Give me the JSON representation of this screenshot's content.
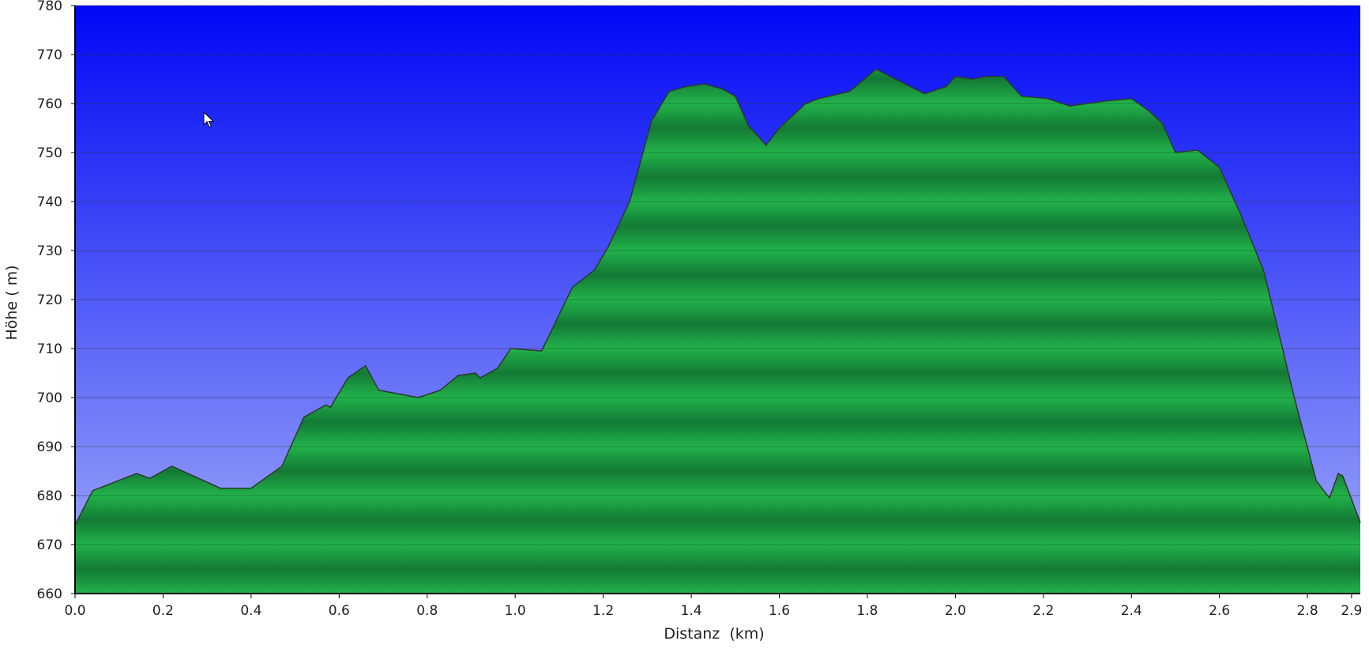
{
  "chart_data": {
    "type": "area",
    "xlabel": "Distanz  (km)",
    "ylabel": "Höhe ( m)",
    "xlim": [
      0,
      2.92
    ],
    "ylim": [
      660,
      780
    ],
    "x_ticks": [
      0,
      0.2,
      0.4,
      0.6,
      0.8,
      1.0,
      1.2,
      1.4,
      1.6,
      1.8,
      2.0,
      2.2,
      2.4,
      2.6,
      2.8,
      2.9
    ],
    "x_tick_labels": [
      "0.0",
      "0.2",
      "0.4",
      "0.6",
      "0.8",
      "1.0",
      "1.2",
      "1.4",
      "1.6",
      "1.8",
      "2.0",
      "2.2",
      "2.4",
      "2.6",
      "2.8",
      "2.9"
    ],
    "y_ticks": [
      660,
      670,
      680,
      690,
      700,
      710,
      720,
      730,
      740,
      750,
      760,
      770,
      780
    ],
    "y_tick_labels": [
      "660",
      "670",
      "680",
      "690",
      "700",
      "710",
      "720",
      "730",
      "740",
      "750",
      "760",
      "770",
      "780"
    ],
    "grid": "horizontal",
    "legend": "none",
    "series": [
      {
        "x": [
          0.0,
          0.04,
          0.14,
          0.17,
          0.22,
          0.33,
          0.4,
          0.47,
          0.52,
          0.57,
          0.58,
          0.62,
          0.66,
          0.69,
          0.78,
          0.83,
          0.87,
          0.91,
          0.92,
          0.96,
          0.99,
          1.06,
          1.13,
          1.18,
          1.21,
          1.26,
          1.31,
          1.35,
          1.39,
          1.43,
          1.47,
          1.5,
          1.53,
          1.57,
          1.6,
          1.66,
          1.69,
          1.76,
          1.82,
          1.93,
          1.98,
          2.0,
          2.04,
          2.07,
          2.11,
          2.15,
          2.21,
          2.26,
          2.3,
          2.34,
          2.4,
          2.44,
          2.47,
          2.5,
          2.55,
          2.6,
          2.65,
          2.7,
          2.73,
          2.77,
          2.82,
          2.85,
          2.87,
          2.88,
          2.92
        ],
        "values": [
          674,
          681,
          684.5,
          683.5,
          686,
          681.5,
          681.5,
          686,
          696,
          698.5,
          698,
          704,
          706.5,
          701.5,
          700,
          701.5,
          704.5,
          705,
          704,
          706,
          710,
          709.5,
          722.5,
          726,
          730.5,
          740,
          756.5,
          762.5,
          763.5,
          764,
          763,
          761.5,
          755.5,
          751.5,
          755,
          760,
          761,
          762.5,
          767,
          762,
          763.5,
          765.5,
          765,
          765.5,
          765.5,
          761.5,
          761,
          759.5,
          760,
          760.5,
          761,
          758.5,
          756,
          750,
          750.5,
          747,
          737,
          726,
          715,
          700,
          683,
          679.5,
          684.5,
          684,
          674.5
        ]
      }
    ],
    "colors": {
      "sky_top": "#0008f5",
      "sky_bottom": "#a3aefa",
      "fill_light": "#22b24a",
      "fill_dark": "#137a35",
      "outline": "#2a3a2a",
      "axis": "#000000",
      "gridline": "#333333"
    }
  }
}
